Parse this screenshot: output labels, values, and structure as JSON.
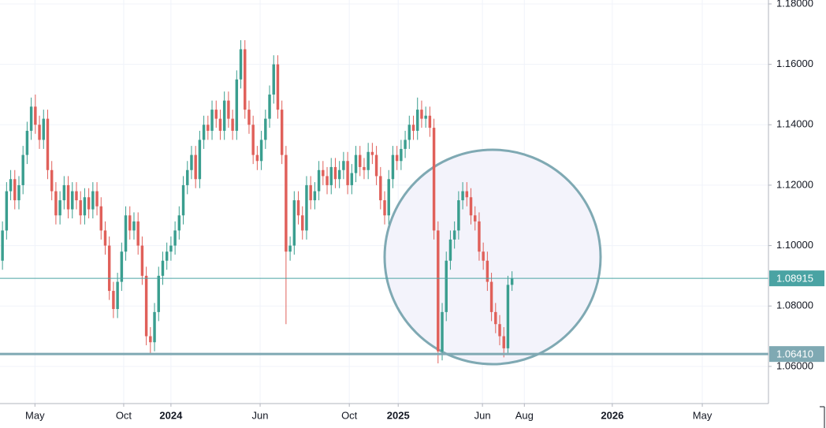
{
  "chart_data": {
    "type": "candlestick",
    "up_color": "#3a9e8f",
    "down_color": "#e0605a",
    "grid": true,
    "xlim": [
      -0.6,
      186.4
    ],
    "xticks": [
      {
        "value": 7.9,
        "label": "May"
      },
      {
        "value": 29.5,
        "label": "Oct"
      },
      {
        "value": 41,
        "label": "2024",
        "bold": true
      },
      {
        "value": 62.7,
        "label": "Jun"
      },
      {
        "value": 84.4,
        "label": "Oct"
      },
      {
        "value": 96.3,
        "label": "2025",
        "bold": true
      },
      {
        "value": 116.8,
        "label": "Jun"
      },
      {
        "value": 127,
        "label": "Aug"
      },
      {
        "value": 148.4,
        "label": "2026",
        "bold": true
      },
      {
        "value": 170.3,
        "label": "May"
      }
    ],
    "ylim": [
      1.0477,
      1.1813
    ],
    "yticks": [
      {
        "value": 1.06,
        "label": "1.06000"
      },
      {
        "value": 1.08,
        "label": "1.08000"
      },
      {
        "value": 1.1,
        "label": "1.10000"
      },
      {
        "value": 1.12,
        "label": "1.12000"
      },
      {
        "value": 1.14,
        "label": "1.14000"
      },
      {
        "value": 1.16,
        "label": "1.16000"
      },
      {
        "value": 1.18,
        "label": "1.18000"
      }
    ],
    "horizontal_lines": [
      {
        "value": 1.08915,
        "label": "1.08915",
        "color": "#4aa3a3",
        "width": 1
      },
      {
        "value": 1.0641,
        "label": "1.06410",
        "color": "#7fa9b3",
        "width": 3
      }
    ],
    "candles": [
      [
        1.095,
        1.108,
        1.092,
        1.105
      ],
      [
        1.105,
        1.121,
        1.102,
        1.118
      ],
      [
        1.118,
        1.125,
        1.115,
        1.122
      ],
      [
        1.122,
        1.125,
        1.112,
        1.115
      ],
      [
        1.115,
        1.123,
        1.112,
        1.12
      ],
      [
        1.12,
        1.133,
        1.117,
        1.13
      ],
      [
        1.13,
        1.141,
        1.127,
        1.138
      ],
      [
        1.138,
        1.149,
        1.135,
        1.146
      ],
      [
        1.146,
        1.15,
        1.137,
        1.14
      ],
      [
        1.14,
        1.143,
        1.132,
        1.135
      ],
      [
        1.135,
        1.145,
        1.132,
        1.142
      ],
      [
        1.142,
        1.145,
        1.122,
        1.125
      ],
      [
        1.125,
        1.128,
        1.115,
        1.118
      ],
      [
        1.118,
        1.121,
        1.107,
        1.11
      ],
      [
        1.11,
        1.118,
        1.107,
        1.115
      ],
      [
        1.115,
        1.123,
        1.112,
        1.12
      ],
      [
        1.12,
        1.123,
        1.109,
        1.112
      ],
      [
        1.112,
        1.121,
        1.109,
        1.118
      ],
      [
        1.118,
        1.121,
        1.112,
        1.115
      ],
      [
        1.115,
        1.118,
        1.107,
        1.11
      ],
      [
        1.11,
        1.119,
        1.107,
        1.116
      ],
      [
        1.116,
        1.119,
        1.109,
        1.112
      ],
      [
        1.112,
        1.121,
        1.109,
        1.118
      ],
      [
        1.118,
        1.121,
        1.11,
        1.113
      ],
      [
        1.113,
        1.116,
        1.102,
        1.105
      ],
      [
        1.105,
        1.108,
        1.097,
        1.1
      ],
      [
        1.1,
        1.103,
        1.082,
        1.085
      ],
      [
        1.085,
        1.088,
        1.076,
        1.079
      ],
      [
        1.079,
        1.091,
        1.076,
        1.088
      ],
      [
        1.088,
        1.101,
        1.085,
        1.098
      ],
      [
        1.098,
        1.113,
        1.095,
        1.11
      ],
      [
        1.11,
        1.113,
        1.102,
        1.105
      ],
      [
        1.105,
        1.111,
        1.102,
        1.108
      ],
      [
        1.108,
        1.111,
        1.097,
        1.1
      ],
      [
        1.1,
        1.103,
        1.087,
        1.09
      ],
      [
        1.09,
        1.093,
        1.067,
        1.07
      ],
      [
        1.07,
        1.073,
        1.064,
        1.068
      ],
      [
        1.068,
        1.081,
        1.065,
        1.078
      ],
      [
        1.078,
        1.093,
        1.075,
        1.09
      ],
      [
        1.09,
        1.098,
        1.087,
        1.095
      ],
      [
        1.095,
        1.101,
        1.092,
        1.098
      ],
      [
        1.098,
        1.103,
        1.095,
        1.1
      ],
      [
        1.1,
        1.108,
        1.097,
        1.105
      ],
      [
        1.105,
        1.113,
        1.102,
        1.11
      ],
      [
        1.11,
        1.123,
        1.107,
        1.12
      ],
      [
        1.12,
        1.128,
        1.117,
        1.125
      ],
      [
        1.125,
        1.133,
        1.122,
        1.13
      ],
      [
        1.13,
        1.133,
        1.119,
        1.122
      ],
      [
        1.122,
        1.138,
        1.119,
        1.135
      ],
      [
        1.135,
        1.143,
        1.132,
        1.14
      ],
      [
        1.14,
        1.143,
        1.135,
        1.138
      ],
      [
        1.138,
        1.148,
        1.135,
        1.145
      ],
      [
        1.145,
        1.148,
        1.139,
        1.142
      ],
      [
        1.142,
        1.145,
        1.135,
        1.138
      ],
      [
        1.138,
        1.151,
        1.135,
        1.148
      ],
      [
        1.148,
        1.151,
        1.139,
        1.142
      ],
      [
        1.142,
        1.145,
        1.135,
        1.138
      ],
      [
        1.138,
        1.158,
        1.135,
        1.155
      ],
      [
        1.155,
        1.168,
        1.152,
        1.165
      ],
      [
        1.165,
        1.168,
        1.142,
        1.145
      ],
      [
        1.145,
        1.148,
        1.137,
        1.14
      ],
      [
        1.14,
        1.143,
        1.127,
        1.13
      ],
      [
        1.13,
        1.133,
        1.125,
        1.128
      ],
      [
        1.128,
        1.138,
        1.125,
        1.135
      ],
      [
        1.135,
        1.145,
        1.132,
        1.142
      ],
      [
        1.142,
        1.153,
        1.139,
        1.15
      ],
      [
        1.15,
        1.163,
        1.147,
        1.16
      ],
      [
        1.16,
        1.163,
        1.142,
        1.145
      ],
      [
        1.145,
        1.148,
        1.127,
        1.13
      ],
      [
        1.13,
        1.133,
        1.074,
        1.098
      ],
      [
        1.098,
        1.103,
        1.095,
        1.1
      ],
      [
        1.1,
        1.118,
        1.097,
        1.115
      ],
      [
        1.115,
        1.118,
        1.107,
        1.11
      ],
      [
        1.11,
        1.113,
        1.102,
        1.105
      ],
      [
        1.105,
        1.123,
        1.102,
        1.12
      ],
      [
        1.12,
        1.123,
        1.112,
        1.115
      ],
      [
        1.115,
        1.121,
        1.112,
        1.118
      ],
      [
        1.118,
        1.128,
        1.115,
        1.125
      ],
      [
        1.125,
        1.128,
        1.12,
        1.123
      ],
      [
        1.123,
        1.126,
        1.117,
        1.12
      ],
      [
        1.12,
        1.129,
        1.117,
        1.126
      ],
      [
        1.126,
        1.129,
        1.119,
        1.122
      ],
      [
        1.122,
        1.128,
        1.119,
        1.125
      ],
      [
        1.125,
        1.131,
        1.122,
        1.128
      ],
      [
        1.128,
        1.131,
        1.117,
        1.12
      ],
      [
        1.12,
        1.127,
        1.117,
        1.124
      ],
      [
        1.124,
        1.133,
        1.121,
        1.13
      ],
      [
        1.13,
        1.133,
        1.123,
        1.126
      ],
      [
        1.126,
        1.129,
        1.122,
        1.125
      ],
      [
        1.125,
        1.134,
        1.122,
        1.131
      ],
      [
        1.131,
        1.134,
        1.127,
        1.13
      ],
      [
        1.13,
        1.133,
        1.12,
        1.123
      ],
      [
        1.123,
        1.126,
        1.112,
        1.115
      ],
      [
        1.115,
        1.118,
        1.107,
        1.11
      ],
      [
        1.11,
        1.125,
        1.107,
        1.122
      ],
      [
        1.122,
        1.133,
        1.119,
        1.13
      ],
      [
        1.13,
        1.133,
        1.125,
        1.128
      ],
      [
        1.128,
        1.135,
        1.125,
        1.132
      ],
      [
        1.132,
        1.138,
        1.129,
        1.135
      ],
      [
        1.135,
        1.143,
        1.132,
        1.14
      ],
      [
        1.14,
        1.143,
        1.135,
        1.138
      ],
      [
        1.138,
        1.149,
        1.135,
        1.145
      ],
      [
        1.145,
        1.148,
        1.139,
        1.142
      ],
      [
        1.142,
        1.146,
        1.139,
        1.143
      ],
      [
        1.143,
        1.146,
        1.136,
        1.139
      ],
      [
        1.139,
        1.142,
        1.102,
        1.105
      ],
      [
        1.105,
        1.108,
        1.061,
        1.065
      ],
      [
        1.065,
        1.081,
        1.062,
        1.078
      ],
      [
        1.078,
        1.098,
        1.075,
        1.095
      ],
      [
        1.095,
        1.105,
        1.092,
        1.102
      ],
      [
        1.102,
        1.108,
        1.099,
        1.105
      ],
      [
        1.105,
        1.118,
        1.102,
        1.115
      ],
      [
        1.115,
        1.121,
        1.112,
        1.118
      ],
      [
        1.118,
        1.121,
        1.113,
        1.116
      ],
      [
        1.116,
        1.119,
        1.107,
        1.11
      ],
      [
        1.11,
        1.113,
        1.105,
        1.108
      ],
      [
        1.108,
        1.111,
        1.095,
        1.098
      ],
      [
        1.098,
        1.101,
        1.092,
        1.095
      ],
      [
        1.095,
        1.098,
        1.085,
        1.088
      ],
      [
        1.088,
        1.091,
        1.075,
        1.078
      ],
      [
        1.078,
        1.081,
        1.071,
        1.074
      ],
      [
        1.074,
        1.077,
        1.067,
        1.07
      ],
      [
        1.07,
        1.073,
        1.063,
        1.066
      ],
      [
        1.066,
        1.09,
        1.064,
        1.087
      ],
      [
        1.087,
        1.0915,
        1.085,
        1.0891
      ]
    ]
  }
}
